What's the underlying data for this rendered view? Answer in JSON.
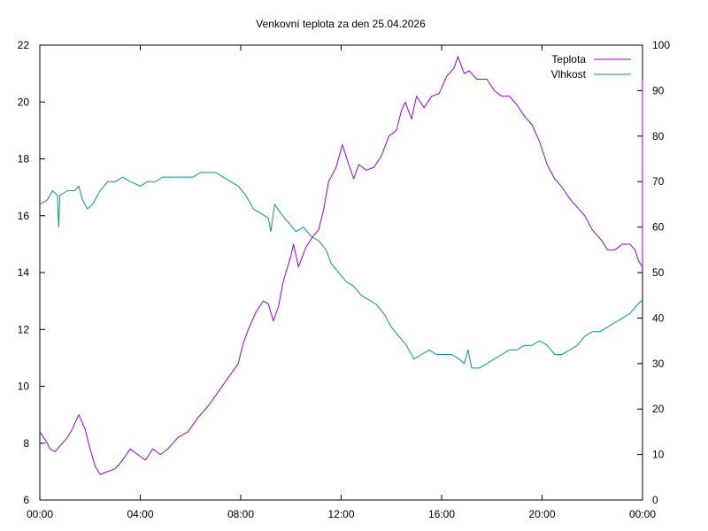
{
  "chart_data": {
    "type": "line",
    "title": "Venkovní teplota za den 25.04.2026",
    "xlabel": "",
    "ylabel": "",
    "y2label": "",
    "legend_position": "top-right",
    "grid": false,
    "x_range": [
      0,
      24
    ],
    "x_ticks": [
      {
        "x": 0,
        "label": "00:00"
      },
      {
        "x": 4,
        "label": "04:00"
      },
      {
        "x": 8,
        "label": "08:00"
      },
      {
        "x": 12,
        "label": "12:00"
      },
      {
        "x": 16,
        "label": "16:00"
      },
      {
        "x": 20,
        "label": "20:00"
      },
      {
        "x": 24,
        "label": "00:00"
      }
    ],
    "y_range": [
      6,
      22
    ],
    "y_ticks": [
      6,
      8,
      10,
      12,
      14,
      16,
      18,
      20,
      22
    ],
    "y2_range": [
      0,
      100
    ],
    "y2_ticks": [
      0,
      10,
      20,
      30,
      40,
      50,
      60,
      70,
      80,
      90,
      100
    ],
    "series": [
      {
        "name": "Teplota",
        "axis": "y",
        "color": "#9400d3",
        "points": [
          [
            0.0,
            8.4
          ],
          [
            0.3,
            8.0
          ],
          [
            0.4,
            7.8
          ],
          [
            0.6,
            7.7
          ],
          [
            0.9,
            8.0
          ],
          [
            1.1,
            8.2
          ],
          [
            1.3,
            8.5
          ],
          [
            1.55,
            9.0
          ],
          [
            1.8,
            8.5
          ],
          [
            2.0,
            7.8
          ],
          [
            2.2,
            7.2
          ],
          [
            2.4,
            6.9
          ],
          [
            2.7,
            7.0
          ],
          [
            3.0,
            7.1
          ],
          [
            3.3,
            7.4
          ],
          [
            3.6,
            7.8
          ],
          [
            3.9,
            7.6
          ],
          [
            4.2,
            7.4
          ],
          [
            4.5,
            7.8
          ],
          [
            4.8,
            7.6
          ],
          [
            5.1,
            7.8
          ],
          [
            5.5,
            8.2
          ],
          [
            5.9,
            8.4
          ],
          [
            6.3,
            8.9
          ],
          [
            6.7,
            9.3
          ],
          [
            7.1,
            9.8
          ],
          [
            7.5,
            10.3
          ],
          [
            7.9,
            10.8
          ],
          [
            8.1,
            11.5
          ],
          [
            8.3,
            12.0
          ],
          [
            8.6,
            12.6
          ],
          [
            8.9,
            13.0
          ],
          [
            9.1,
            12.9
          ],
          [
            9.3,
            12.3
          ],
          [
            9.5,
            12.8
          ],
          [
            9.7,
            13.7
          ],
          [
            10.0,
            14.6
          ],
          [
            10.1,
            15.0
          ],
          [
            10.3,
            14.2
          ],
          [
            10.6,
            14.9
          ],
          [
            10.9,
            15.3
          ],
          [
            11.1,
            15.5
          ],
          [
            11.3,
            16.2
          ],
          [
            11.5,
            17.2
          ],
          [
            11.8,
            17.7
          ],
          [
            12.05,
            18.5
          ],
          [
            12.3,
            17.8
          ],
          [
            12.5,
            17.3
          ],
          [
            12.7,
            17.8
          ],
          [
            13.0,
            17.6
          ],
          [
            13.3,
            17.7
          ],
          [
            13.6,
            18.1
          ],
          [
            13.9,
            18.8
          ],
          [
            14.2,
            19.0
          ],
          [
            14.4,
            19.7
          ],
          [
            14.55,
            20.0
          ],
          [
            14.8,
            19.4
          ],
          [
            15.0,
            20.2
          ],
          [
            15.3,
            19.8
          ],
          [
            15.6,
            20.2
          ],
          [
            15.9,
            20.3
          ],
          [
            16.2,
            20.9
          ],
          [
            16.5,
            21.2
          ],
          [
            16.65,
            21.6
          ],
          [
            16.9,
            21.0
          ],
          [
            17.1,
            21.1
          ],
          [
            17.4,
            20.8
          ],
          [
            17.8,
            20.8
          ],
          [
            18.1,
            20.4
          ],
          [
            18.4,
            20.2
          ],
          [
            18.7,
            20.2
          ],
          [
            19.0,
            19.9
          ],
          [
            19.3,
            19.5
          ],
          [
            19.6,
            19.2
          ],
          [
            19.9,
            18.6
          ],
          [
            20.2,
            17.8
          ],
          [
            20.5,
            17.3
          ],
          [
            20.8,
            17.0
          ],
          [
            21.1,
            16.6
          ],
          [
            21.4,
            16.3
          ],
          [
            21.7,
            16.0
          ],
          [
            22.0,
            15.5
          ],
          [
            22.4,
            15.1
          ],
          [
            22.6,
            14.8
          ],
          [
            22.9,
            14.8
          ],
          [
            23.2,
            15.0
          ],
          [
            23.5,
            15.0
          ],
          [
            23.7,
            14.8
          ],
          [
            23.85,
            14.4
          ],
          [
            24.0,
            14.2
          ],
          [
            24.0,
            20.8
          ]
        ]
      },
      {
        "name": "Vlhkost",
        "axis": "y2",
        "color": "#009e73",
        "points": [
          [
            0.0,
            65
          ],
          [
            0.3,
            66
          ],
          [
            0.5,
            68
          ],
          [
            0.7,
            67
          ],
          [
            0.75,
            60
          ],
          [
            0.8,
            67
          ],
          [
            1.1,
            68
          ],
          [
            1.4,
            68
          ],
          [
            1.55,
            69
          ],
          [
            1.7,
            66
          ],
          [
            1.9,
            64
          ],
          [
            2.1,
            65
          ],
          [
            2.4,
            68
          ],
          [
            2.7,
            70
          ],
          [
            3.0,
            70
          ],
          [
            3.3,
            71
          ],
          [
            3.6,
            70
          ],
          [
            4.0,
            69
          ],
          [
            4.3,
            70
          ],
          [
            4.6,
            70
          ],
          [
            4.9,
            71
          ],
          [
            5.2,
            71
          ],
          [
            5.5,
            71
          ],
          [
            5.8,
            71
          ],
          [
            6.1,
            71
          ],
          [
            6.4,
            72
          ],
          [
            6.7,
            72
          ],
          [
            7.0,
            72
          ],
          [
            7.3,
            71
          ],
          [
            7.6,
            70
          ],
          [
            7.9,
            69
          ],
          [
            8.2,
            67
          ],
          [
            8.5,
            64
          ],
          [
            8.8,
            63
          ],
          [
            9.1,
            62
          ],
          [
            9.2,
            59
          ],
          [
            9.35,
            65
          ],
          [
            9.6,
            63
          ],
          [
            9.9,
            61
          ],
          [
            10.2,
            59
          ],
          [
            10.5,
            60
          ],
          [
            10.8,
            58
          ],
          [
            11.1,
            57
          ],
          [
            11.4,
            55
          ],
          [
            11.6,
            52
          ],
          [
            11.9,
            50
          ],
          [
            12.2,
            48
          ],
          [
            12.5,
            47
          ],
          [
            12.8,
            45
          ],
          [
            13.1,
            44
          ],
          [
            13.4,
            43
          ],
          [
            13.7,
            41
          ],
          [
            14.0,
            38
          ],
          [
            14.3,
            36
          ],
          [
            14.6,
            34
          ],
          [
            14.9,
            31
          ],
          [
            15.2,
            32
          ],
          [
            15.5,
            33
          ],
          [
            15.8,
            32
          ],
          [
            16.1,
            32
          ],
          [
            16.4,
            32
          ],
          [
            16.7,
            31
          ],
          [
            16.9,
            30
          ],
          [
            17.05,
            33
          ],
          [
            17.2,
            29
          ],
          [
            17.5,
            29
          ],
          [
            17.8,
            30
          ],
          [
            18.1,
            31
          ],
          [
            18.4,
            32
          ],
          [
            18.7,
            33
          ],
          [
            19.0,
            33
          ],
          [
            19.3,
            34
          ],
          [
            19.6,
            34
          ],
          [
            19.9,
            35
          ],
          [
            20.2,
            34
          ],
          [
            20.5,
            32
          ],
          [
            20.8,
            32
          ],
          [
            21.1,
            33
          ],
          [
            21.4,
            34
          ],
          [
            21.7,
            36
          ],
          [
            22.0,
            37
          ],
          [
            22.3,
            37
          ],
          [
            22.6,
            38
          ],
          [
            22.9,
            39
          ],
          [
            23.2,
            40
          ],
          [
            23.5,
            41
          ],
          [
            23.8,
            43
          ],
          [
            24.0,
            44
          ]
        ]
      }
    ]
  }
}
